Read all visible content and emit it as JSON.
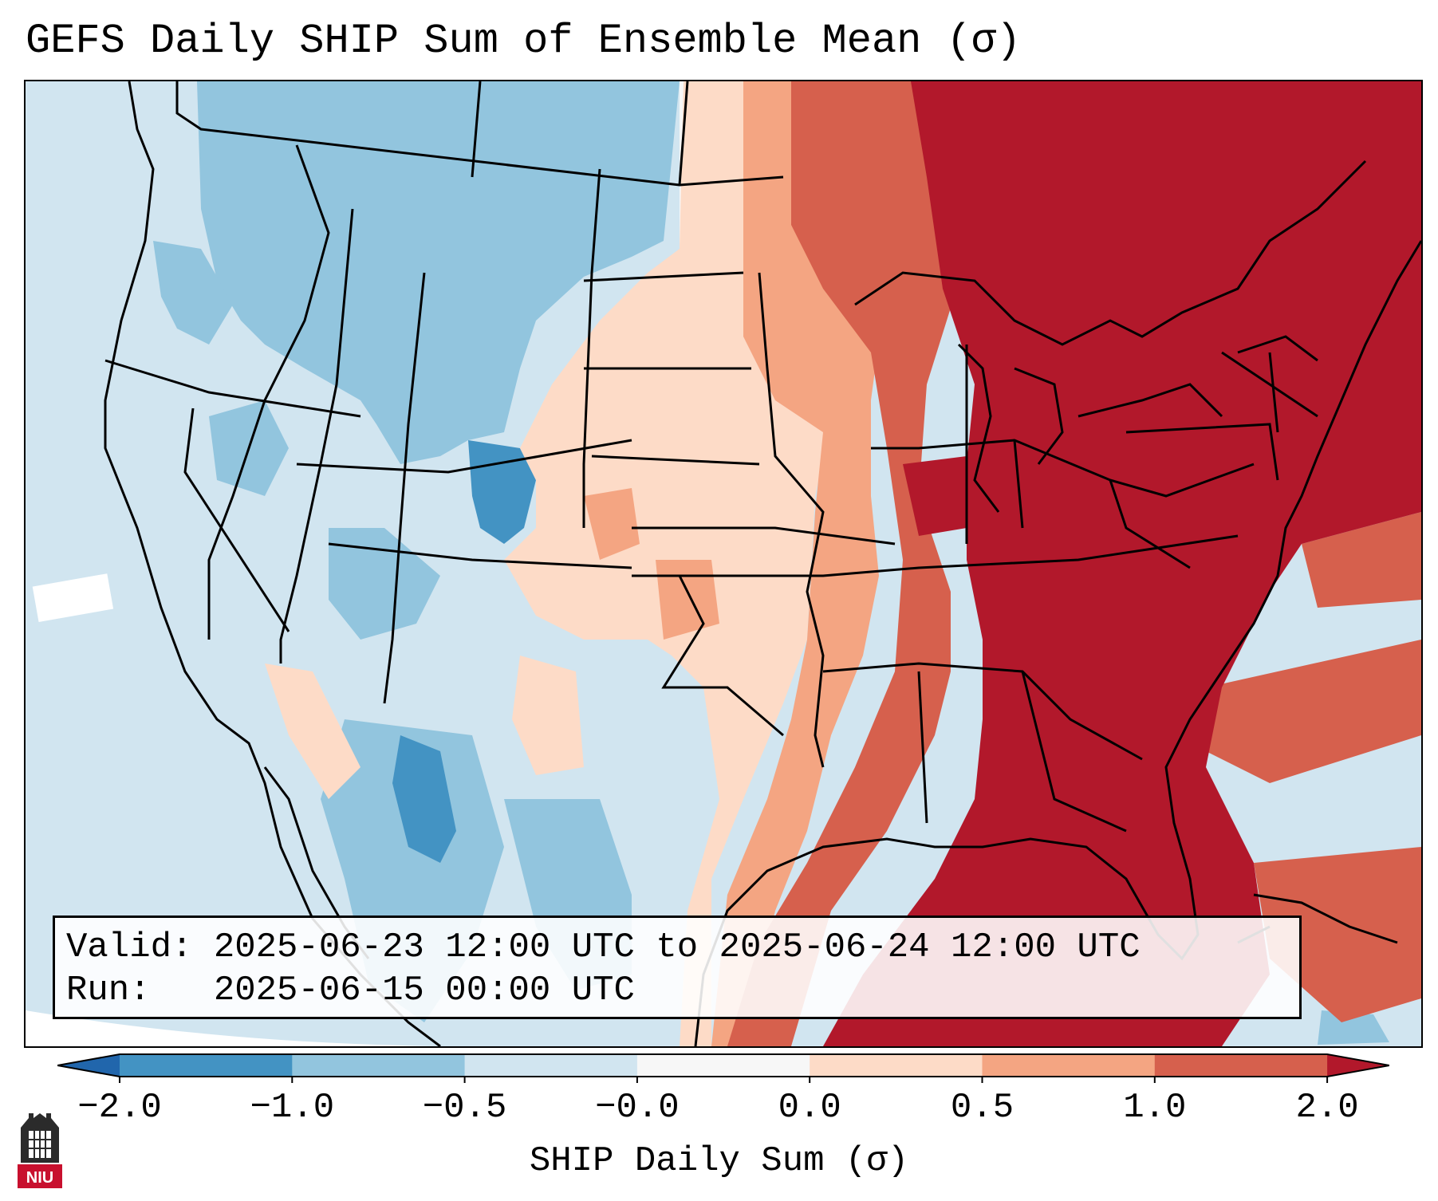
{
  "title": "GEFS Daily SHIP Sum of Ensemble Mean (σ)",
  "info": {
    "valid_label": "Valid:",
    "valid_value": "2025-06-23 12:00 UTC to 2025-06-24 12:00 UTC",
    "run_label": "Run:",
    "run_value": "2025-06-15 00:00 UTC"
  },
  "colorbar": {
    "label": "SHIP Daily Sum (σ)",
    "ticks": [
      "−2.0",
      "−1.0",
      "−0.5",
      "−0.0",
      "0.0",
      "0.5",
      "1.0",
      "2.0"
    ],
    "bins": [
      {
        "range": "-2.0 to -1.0",
        "color": "#4393c3"
      },
      {
        "range": "-1.0 to -0.5",
        "color": "#92c5de"
      },
      {
        "range": "-0.5 to -0.0",
        "color": "#d1e5f0"
      },
      {
        "range": "-0.0 to 0.0",
        "color": "#f7f7f7"
      },
      {
        "range": "0.0 to 0.5",
        "color": "#fddbc7"
      },
      {
        "range": "0.5 to 1.0",
        "color": "#f4a582"
      },
      {
        "range": "1.0 to 2.0",
        "color": "#d6604d"
      },
      {
        "range": "> 2.0",
        "color": "#b2182b"
      }
    ],
    "under_color": "#2166ac",
    "over_color": "#b2182b"
  },
  "map": {
    "region": "Contiguous United States, northern Mexico and Gulf of Mexico",
    "colors": {
      "strong_negative": "#4393c3",
      "moderate_negative": "#92c5de",
      "weak_negative": "#d1e5f0",
      "near_zero": "#f7f7f7",
      "weak_positive": "#fddbc7",
      "moderate_positive": "#f4a582",
      "strong_positive": "#d6604d",
      "extreme_positive": "#b2182b"
    }
  },
  "logo": {
    "text": "NIU",
    "color": "#c8102e"
  }
}
